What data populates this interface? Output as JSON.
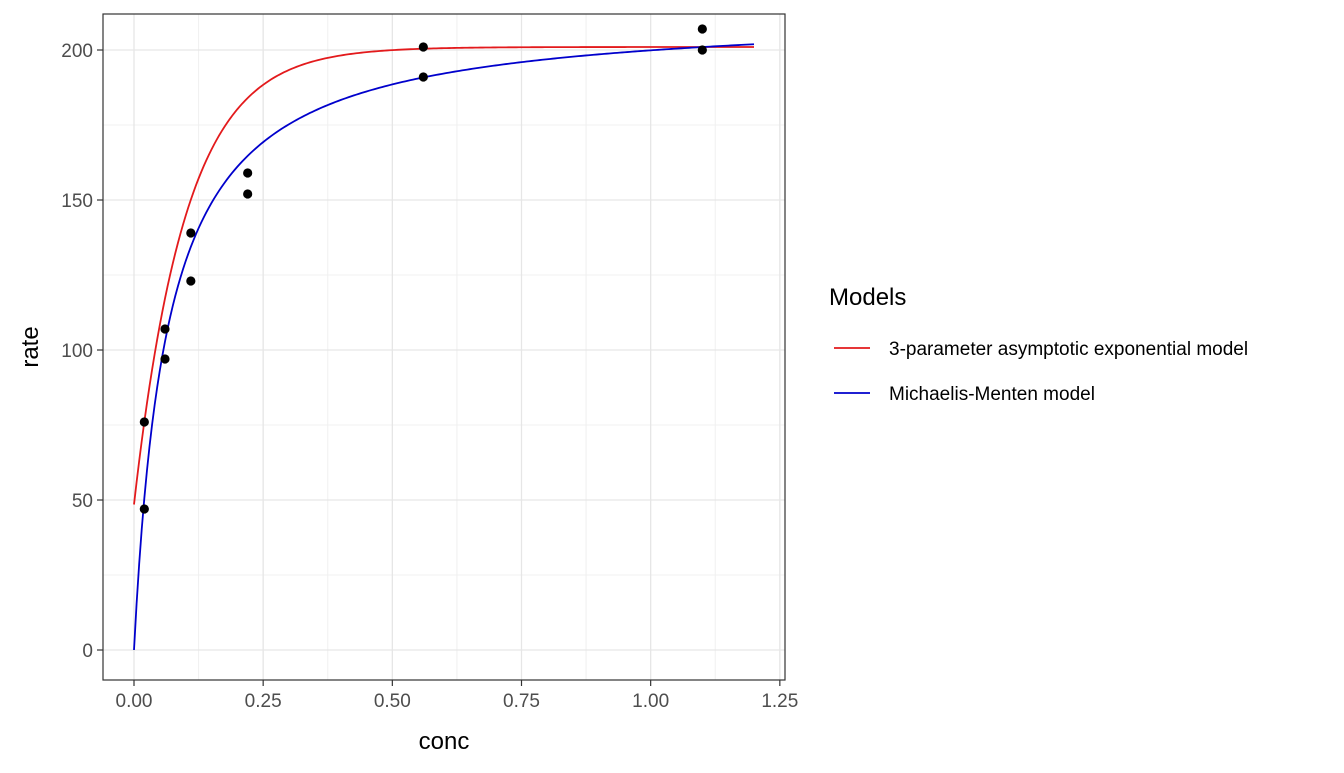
{
  "chart_data": {
    "type": "scatter",
    "xlabel": "conc",
    "ylabel": "rate",
    "xlim": [
      -0.06,
      1.26
    ],
    "ylim": [
      -10,
      212
    ],
    "x_ticks": [
      0.0,
      0.25,
      0.5,
      0.75,
      1.0,
      1.25
    ],
    "x_tick_labels": [
      "0.00",
      "0.25",
      "0.50",
      "0.75",
      "1.00",
      "1.25"
    ],
    "y_ticks": [
      0,
      50,
      100,
      150,
      200
    ],
    "y_tick_labels": [
      "0",
      "50",
      "100",
      "150",
      "200"
    ],
    "grid": true,
    "legend": {
      "title": "Models",
      "position": "right",
      "entries": [
        {
          "label": "3-parameter asymptotic exponential model",
          "color": "#e31a1c"
        },
        {
          "label": "Michaelis-Menten model",
          "color": "#0000cc"
        }
      ]
    },
    "points": {
      "color": "#000000",
      "x": [
        0.02,
        0.02,
        0.06,
        0.06,
        0.11,
        0.11,
        0.22,
        0.22,
        0.56,
        0.56,
        1.1,
        1.1
      ],
      "y": [
        76,
        47,
        97,
        107,
        123,
        139,
        159,
        152,
        191,
        201,
        207,
        200
      ]
    },
    "series": [
      {
        "name": "3-parameter asymptotic exponential model",
        "color": "#e31a1c",
        "model": "asymptotic",
        "params": {
          "asym": 201.0,
          "y0": 48.5,
          "lrc": 2.3
        },
        "x_range": [
          0.0,
          1.2
        ]
      },
      {
        "name": "Michaelis-Menten model",
        "color": "#0000cc",
        "model": "michaelis-menten",
        "params": {
          "vm": 212.7,
          "k": 0.0641
        },
        "x_range": [
          0.0,
          1.2
        ]
      }
    ]
  }
}
